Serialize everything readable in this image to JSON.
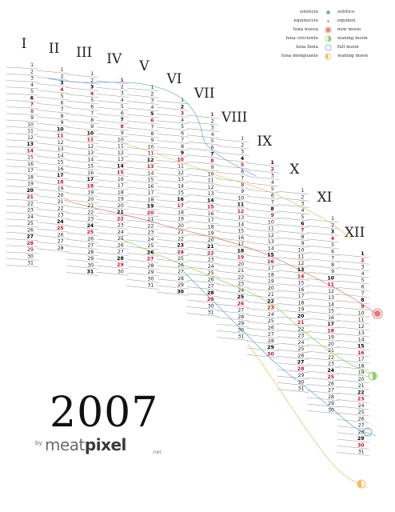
{
  "year": "2007",
  "brand": {
    "by": "by",
    "meat": "meat",
    "pixel": "pixel",
    "net": ".net"
  },
  "months": [
    "I",
    "II",
    "III",
    "IV",
    "V",
    "VI",
    "VII",
    "VIII",
    "IX",
    "X",
    "XI",
    "XII"
  ],
  "days_in_month": [
    31,
    28,
    31,
    30,
    31,
    30,
    31,
    31,
    30,
    31,
    30,
    31
  ],
  "first_weekday_monday0": 0,
  "legend": [
    {
      "es": "solsticio",
      "en": "solstice",
      "icon": "solstice-dot-icon",
      "color": "#7a9fd6"
    },
    {
      "es": "equinoccio",
      "en": "equinox",
      "icon": "equinox-dot-icon",
      "color": "#9bb3d8"
    },
    {
      "es": "luna nueva",
      "en": "new moon",
      "icon": "new-moon-icon",
      "color": "#e07b7b"
    },
    {
      "es": "luna creciente",
      "en": "waxing moon",
      "icon": "waxing-moon-icon",
      "color": "#8fd16a"
    },
    {
      "es": "luna llena",
      "en": "full moon",
      "icon": "full-moon-icon",
      "color": "#7aa6e0"
    },
    {
      "es": "luna menguante",
      "en": "waning moon",
      "icon": "waning-moon-icon",
      "color": "#f0c060"
    }
  ],
  "colors": {
    "sunday": "#c8102e",
    "saturday": "#000000",
    "weekday": "#222222"
  }
}
